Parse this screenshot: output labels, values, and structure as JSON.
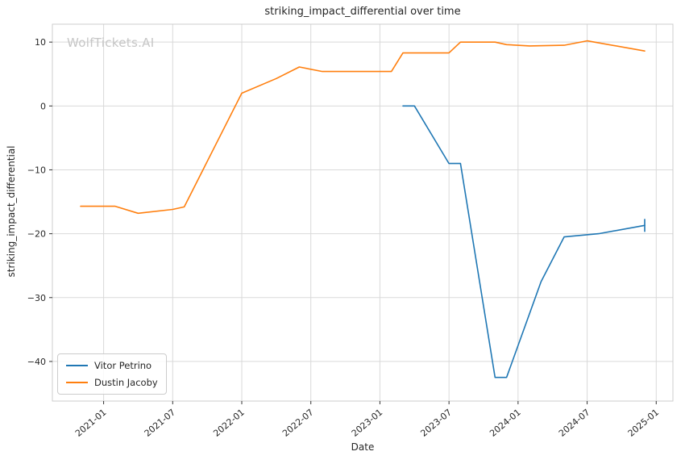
{
  "watermark": "WolfTickets.AI",
  "chart_data": {
    "type": "line",
    "title": "striking_impact_differential over time",
    "xlabel": "Date",
    "ylabel": "striking_impact_differential",
    "grid": true,
    "legend_position": "lower left",
    "grid_color": "#d9d9d9",
    "spine_color": "#cccccc",
    "tick_color": "#333333",
    "text_color": "#262626",
    "ylim": [
      -46.2,
      12.8
    ],
    "y_ticks": [
      10,
      0,
      -10,
      -20,
      -30,
      -40
    ],
    "y_tick_labels": [
      "10",
      "0",
      "−10",
      "−20",
      "−30",
      "−40"
    ],
    "x_tick_labels": [
      "2021-01",
      "2021-07",
      "2022-01",
      "2022-07",
      "2023-01",
      "2023-07",
      "2024-01",
      "2024-07",
      "2025-01"
    ],
    "series": [
      {
        "name": "Vitor Petrino",
        "color": "#1f77b4",
        "end_tick": true,
        "points": [
          [
            "2023-03",
            0.0
          ],
          [
            "2023-04",
            0.0
          ],
          [
            "2023-07",
            -9.0
          ],
          [
            "2023-08",
            -9.0
          ],
          [
            "2023-11",
            -42.5
          ],
          [
            "2023-12",
            -42.5
          ],
          [
            "2024-03",
            -27.5
          ],
          [
            "2024-05",
            -20.5
          ],
          [
            "2024-08",
            -20.0
          ],
          [
            "2024-12",
            -18.7
          ]
        ]
      },
      {
        "name": "Dustin Jacoby",
        "color": "#ff7f0e",
        "end_tick": false,
        "points": [
          [
            "2020-11",
            -15.7
          ],
          [
            "2021-02",
            -15.7
          ],
          [
            "2021-04",
            -16.8
          ],
          [
            "2021-07",
            -16.2
          ],
          [
            "2021-08",
            -15.8
          ],
          [
            "2022-01",
            2.0
          ],
          [
            "2022-04",
            4.3
          ],
          [
            "2022-06",
            6.1
          ],
          [
            "2022-08",
            5.4
          ],
          [
            "2023-02",
            5.4
          ],
          [
            "2023-03",
            8.3
          ],
          [
            "2023-07",
            8.3
          ],
          [
            "2023-08",
            10.0
          ],
          [
            "2023-11",
            10.0
          ],
          [
            "2023-12",
            9.6
          ],
          [
            "2024-02",
            9.4
          ],
          [
            "2024-05",
            9.5
          ],
          [
            "2024-07",
            10.2
          ],
          [
            "2024-12",
            8.6
          ]
        ]
      }
    ]
  }
}
